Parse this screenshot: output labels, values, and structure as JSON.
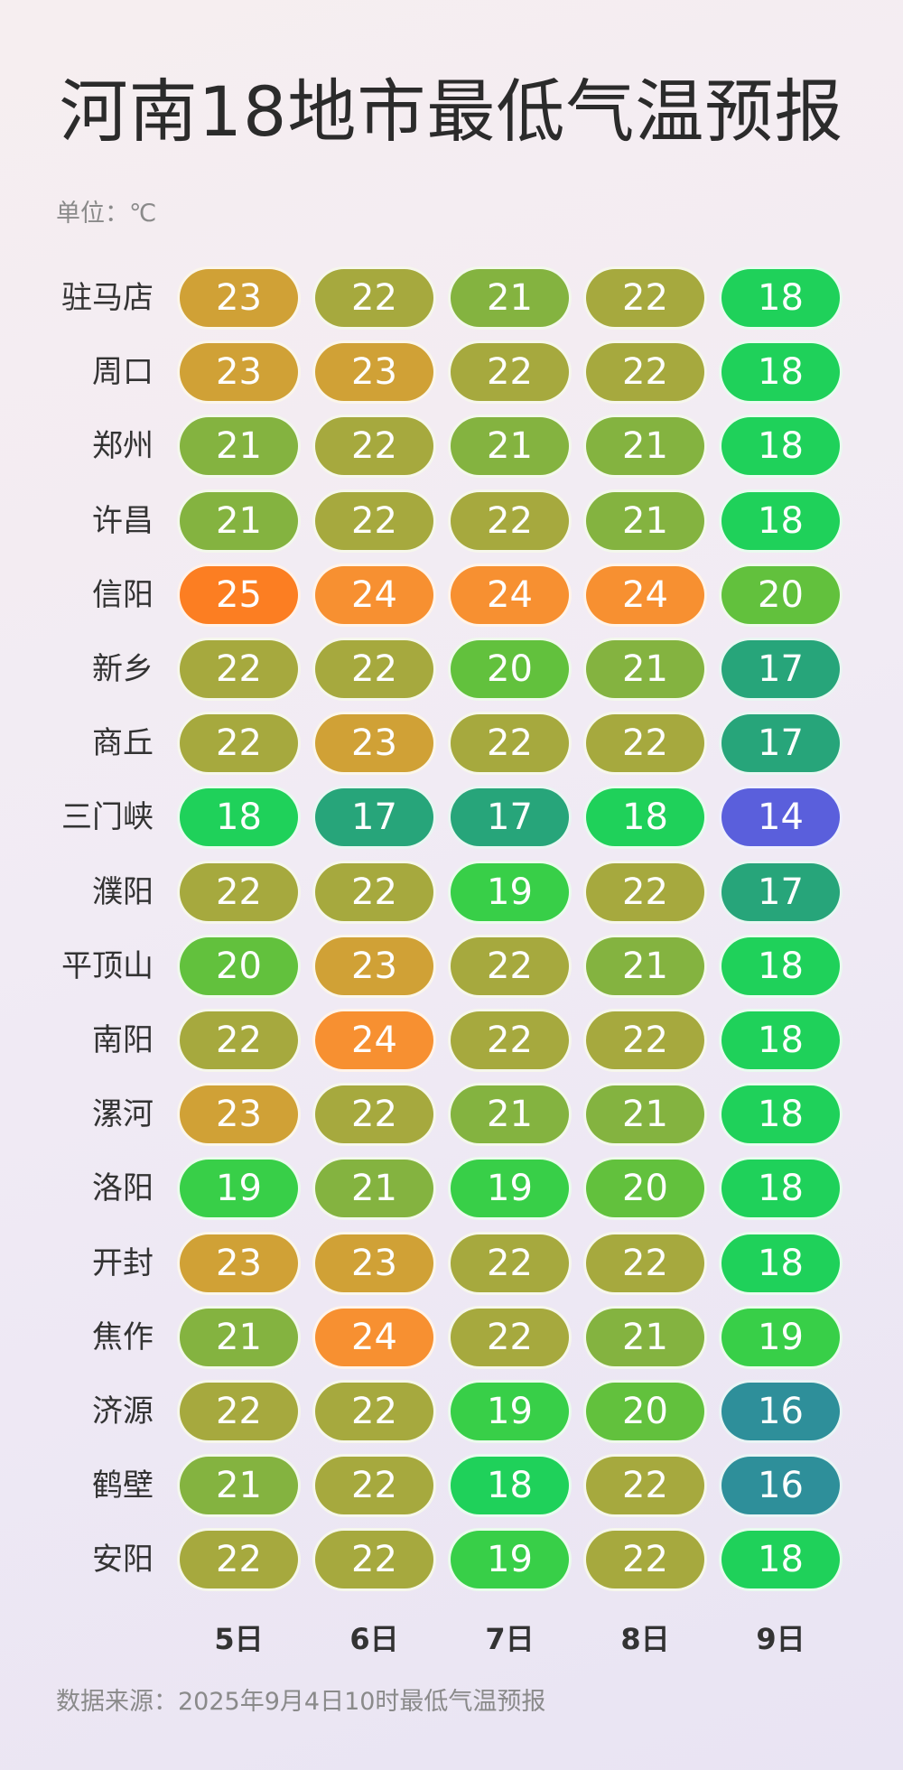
{
  "chart_data": {
    "type": "heatmap",
    "title": "河南18地市最低气温预报",
    "unit_label": "单位：℃",
    "source": "数据来源：2025年9月4日10时最低气温预报",
    "days": [
      "5日",
      "6日",
      "7日",
      "8日",
      "9日"
    ],
    "cities": [
      "驻马店",
      "周口",
      "郑州",
      "许昌",
      "信阳",
      "新乡",
      "商丘",
      "三门峡",
      "濮阳",
      "平顶山",
      "南阳",
      "漯河",
      "洛阳",
      "开封",
      "焦作",
      "济源",
      "鹤壁",
      "安阳"
    ],
    "values": [
      [
        23,
        22,
        21,
        22,
        18
      ],
      [
        23,
        23,
        22,
        22,
        18
      ],
      [
        21,
        22,
        21,
        21,
        18
      ],
      [
        21,
        22,
        22,
        21,
        18
      ],
      [
        25,
        24,
        24,
        24,
        20
      ],
      [
        22,
        22,
        20,
        21,
        17
      ],
      [
        22,
        23,
        22,
        22,
        17
      ],
      [
        18,
        17,
        17,
        18,
        14
      ],
      [
        22,
        22,
        19,
        22,
        17
      ],
      [
        20,
        23,
        22,
        21,
        18
      ],
      [
        22,
        24,
        22,
        22,
        18
      ],
      [
        23,
        22,
        21,
        21,
        18
      ],
      [
        19,
        21,
        19,
        20,
        18
      ],
      [
        23,
        23,
        22,
        22,
        18
      ],
      [
        21,
        24,
        22,
        21,
        19
      ],
      [
        22,
        22,
        19,
        20,
        16
      ],
      [
        21,
        22,
        18,
        22,
        16
      ],
      [
        22,
        22,
        19,
        22,
        18
      ]
    ],
    "color_scale": {
      "14": "#5a5fdc",
      "16": "#2e8f9a",
      "17": "#27a57a",
      "18": "#1fd15a",
      "19": "#38cf48",
      "20": "#62c13d",
      "21": "#84b340",
      "22": "#a6a93e",
      "23": "#d0a136",
      "24": "#f79031",
      "25": "#fc7e22"
    }
  }
}
